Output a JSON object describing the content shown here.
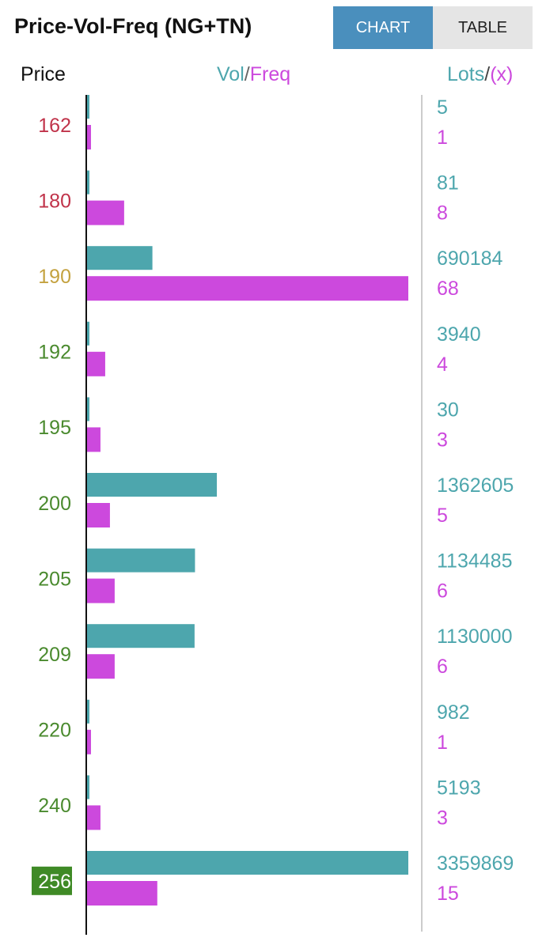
{
  "header": {
    "title": "Price-Vol-Freq (NG+TN)",
    "tabs": [
      {
        "label": "CHART",
        "active": true
      },
      {
        "label": "TABLE",
        "active": false
      }
    ]
  },
  "chart_data": {
    "type": "bar",
    "orientation": "horizontal",
    "column_headers": {
      "price": "Price",
      "vol": "Vol",
      "freq": "Freq",
      "lots": "Lots",
      "x": "(x)"
    },
    "colors": {
      "vol": "#4da6ad",
      "freq": "#cc49dd",
      "price_low": "#c0334a",
      "price_mid": "#c4a240",
      "price_high": "#4a8a2e",
      "highlight_bg": "#3f8a26",
      "separator": "#cccccc"
    },
    "categories": [
      "162",
      "180",
      "190",
      "192",
      "195",
      "200",
      "205",
      "209",
      "220",
      "240",
      "256"
    ],
    "price_color_keys": [
      "price_low",
      "price_low",
      "price_mid",
      "price_high",
      "price_high",
      "price_high",
      "price_high",
      "price_high",
      "price_high",
      "price_high",
      "price_high"
    ],
    "highlighted": "256",
    "series": [
      {
        "name": "Vol",
        "values": [
          5,
          81,
          690184,
          3940,
          30,
          1362605,
          1134485,
          1130000,
          982,
          5193,
          3359869
        ]
      },
      {
        "name": "Freq",
        "values": [
          1,
          8,
          68,
          4,
          3,
          5,
          6,
          6,
          1,
          3,
          15
        ]
      }
    ]
  }
}
